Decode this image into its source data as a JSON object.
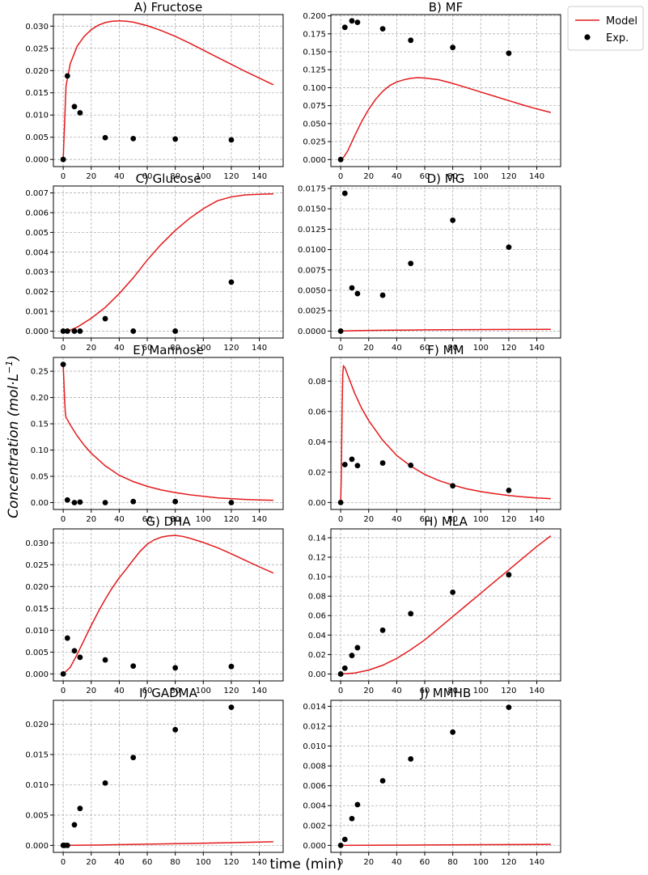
{
  "figure": {
    "xlabel": "time (min)",
    "ylabel_main": "Concentration (mol·L",
    "ylabel_sup": "−1",
    "ylabel_close": ")",
    "legend": {
      "placement": "top-right",
      "entries": [
        "Model",
        "Exp."
      ]
    },
    "colors": {
      "model": "#e41a1c",
      "exp": "#000000"
    }
  },
  "chart_data": [
    {
      "type": "line",
      "title": "A) Fructose",
      "xlim": [
        -7,
        157
      ],
      "ylim": [
        -0.0016,
        0.0326
      ],
      "xticks": [
        0,
        20,
        40,
        60,
        80,
        100,
        120,
        140
      ],
      "yticks": [
        0.0,
        0.005,
        0.01,
        0.015,
        0.02,
        0.025,
        0.03
      ],
      "ytick_labels": [
        "0.000",
        "0.005",
        "0.010",
        "0.015",
        "0.020",
        "0.025",
        "0.030"
      ],
      "grid": true,
      "series": [
        {
          "name": "Model",
          "type": "line",
          "x": [
            0,
            2,
            5,
            10,
            15,
            20,
            25,
            30,
            35,
            40,
            45,
            50,
            60,
            70,
            80,
            90,
            100,
            110,
            120,
            130,
            140,
            150
          ],
          "y": [
            0,
            0.0165,
            0.0215,
            0.0255,
            0.0277,
            0.0292,
            0.0302,
            0.0308,
            0.0311,
            0.0312,
            0.0311,
            0.0309,
            0.0301,
            0.029,
            0.0277,
            0.0262,
            0.0246,
            0.023,
            0.0214,
            0.0198,
            0.0183,
            0.0168
          ]
        },
        {
          "name": "Exp.",
          "type": "scatter",
          "x": [
            0,
            3,
            8,
            12,
            30,
            50,
            80,
            120
          ],
          "y": [
            0,
            0.0188,
            0.0119,
            0.0105,
            0.0049,
            0.0047,
            0.0046,
            0.0044
          ]
        }
      ]
    },
    {
      "type": "line",
      "title": "B) MF",
      "xlim": [
        -7,
        157
      ],
      "ylim": [
        -0.0098,
        0.2018
      ],
      "xticks": [
        0,
        20,
        40,
        60,
        80,
        100,
        120,
        140
      ],
      "yticks": [
        0.0,
        0.025,
        0.05,
        0.075,
        0.1,
        0.125,
        0.15,
        0.175,
        0.2
      ],
      "ytick_labels": [
        "0.000",
        "0.025",
        "0.050",
        "0.075",
        "0.100",
        "0.125",
        "0.150",
        "0.175",
        "0.200"
      ],
      "grid": true,
      "series": [
        {
          "name": "Model",
          "type": "line",
          "x": [
            0,
            2,
            5,
            10,
            15,
            20,
            25,
            30,
            35,
            40,
            45,
            50,
            55,
            60,
            70,
            80,
            90,
            100,
            110,
            120,
            130,
            140,
            150
          ],
          "y": [
            0,
            0.003,
            0.012,
            0.033,
            0.053,
            0.07,
            0.084,
            0.095,
            0.103,
            0.108,
            0.111,
            0.113,
            0.114,
            0.1135,
            0.111,
            0.106,
            0.1,
            0.094,
            0.088,
            0.082,
            0.076,
            0.0705,
            0.0655
          ]
        },
        {
          "name": "Exp.",
          "type": "scatter",
          "x": [
            0,
            3,
            8,
            12,
            30,
            50,
            80,
            120
          ],
          "y": [
            0,
            0.184,
            0.193,
            0.191,
            0.182,
            0.166,
            0.156,
            0.148
          ]
        }
      ]
    },
    {
      "type": "line",
      "title": "C) Glucose",
      "xlim": [
        -7,
        157
      ],
      "ylim": [
        -0.00035,
        0.00735
      ],
      "xticks": [
        0,
        20,
        40,
        60,
        80,
        100,
        120,
        140
      ],
      "yticks": [
        0,
        0.001,
        0.002,
        0.003,
        0.004,
        0.005,
        0.006,
        0.007
      ],
      "ytick_labels": [
        "0.000",
        "0.001",
        "0.002",
        "0.003",
        "0.004",
        "0.005",
        "0.006",
        "0.007"
      ],
      "grid": true,
      "series": [
        {
          "name": "Model",
          "type": "line",
          "x": [
            0,
            5,
            10,
            20,
            30,
            40,
            50,
            60,
            70,
            80,
            90,
            100,
            110,
            120,
            130,
            140,
            150
          ],
          "y": [
            0,
            5e-05,
            0.0002,
            0.00065,
            0.0012,
            0.0019,
            0.0027,
            0.0036,
            0.0044,
            0.0051,
            0.0057,
            0.0062,
            0.0066,
            0.0068,
            0.0069,
            0.00693,
            0.00695
          ]
        },
        {
          "name": "Exp.",
          "type": "scatter",
          "x": [
            0,
            3,
            8,
            12,
            30,
            50,
            80,
            120
          ],
          "y": [
            0,
            0,
            0,
            0,
            0.00063,
            0,
            0,
            0.00248
          ]
        }
      ]
    },
    {
      "type": "line",
      "title": "D) MG",
      "xlim": [
        -7,
        157
      ],
      "ylim": [
        -0.00085,
        0.0178
      ],
      "xticks": [
        0,
        20,
        40,
        60,
        80,
        100,
        120,
        140
      ],
      "yticks": [
        0,
        0.0025,
        0.005,
        0.0075,
        0.01,
        0.0125,
        0.015,
        0.0175
      ],
      "ytick_labels": [
        "0.0000",
        "0.0025",
        "0.0050",
        "0.0075",
        "0.0100",
        "0.0125",
        "0.0150",
        "0.0175"
      ],
      "grid": true,
      "series": [
        {
          "name": "Model",
          "type": "line",
          "x": [
            0,
            10,
            30,
            60,
            90,
            120,
            150
          ],
          "y": [
            0,
            5e-05,
            0.0001,
            0.00015,
            0.00018,
            0.0002,
            0.00021
          ]
        },
        {
          "name": "Exp.",
          "type": "scatter",
          "x": [
            0,
            3,
            8,
            12,
            30,
            50,
            80,
            120
          ],
          "y": [
            0,
            0.0169,
            0.0053,
            0.0046,
            0.0044,
            0.0083,
            0.0136,
            0.0103
          ]
        }
      ]
    },
    {
      "type": "line",
      "title": "E) Mannose",
      "xlim": [
        -7,
        157
      ],
      "ylim": [
        -0.0131,
        0.2763
      ],
      "xticks": [
        0,
        20,
        40,
        60,
        80,
        100,
        120,
        140
      ],
      "yticks": [
        0,
        0.05,
        0.1,
        0.15,
        0.2,
        0.25
      ],
      "ytick_labels": [
        "0.00",
        "0.05",
        "0.10",
        "0.15",
        "0.20",
        "0.25"
      ],
      "grid": true,
      "series": [
        {
          "name": "Model",
          "type": "line",
          "x": [
            0,
            0.5,
            1,
            1.5,
            2,
            3,
            5,
            10,
            15,
            20,
            30,
            40,
            50,
            60,
            70,
            80,
            90,
            100,
            110,
            120,
            130,
            140,
            150
          ],
          "y": [
            0.263,
            0.23,
            0.196,
            0.172,
            0.162,
            0.158,
            0.148,
            0.127,
            0.109,
            0.094,
            0.07,
            0.052,
            0.04,
            0.031,
            0.024,
            0.019,
            0.015,
            0.012,
            0.009,
            0.0075,
            0.006,
            0.005,
            0.0045
          ]
        },
        {
          "name": "Exp.",
          "type": "scatter",
          "x": [
            0,
            3,
            8,
            12,
            30,
            50,
            80,
            120
          ],
          "y": [
            0.263,
            0.005,
            0,
            0.001,
            0,
            0.002,
            0.002,
            0
          ]
        }
      ]
    },
    {
      "type": "line",
      "title": "F) MM",
      "xlim": [
        -7,
        157
      ],
      "ylim": [
        -0.0046,
        0.0956
      ],
      "xticks": [
        0,
        20,
        40,
        60,
        80,
        100,
        120,
        140
      ],
      "yticks": [
        0,
        0.02,
        0.04,
        0.06,
        0.08
      ],
      "ytick_labels": [
        "0.00",
        "0.02",
        "0.04",
        "0.06",
        "0.08"
      ],
      "grid": true,
      "series": [
        {
          "name": "Model",
          "type": "line",
          "x": [
            0,
            0.5,
            1,
            1.5,
            2,
            3,
            5,
            10,
            15,
            20,
            30,
            40,
            50,
            60,
            70,
            80,
            90,
            100,
            110,
            120,
            130,
            140,
            150
          ],
          "y": [
            0,
            0.02,
            0.06,
            0.085,
            0.09,
            0.089,
            0.084,
            0.072,
            0.062,
            0.054,
            0.041,
            0.031,
            0.024,
            0.0185,
            0.0145,
            0.0115,
            0.009,
            0.0072,
            0.0058,
            0.0046,
            0.0037,
            0.003,
            0.0025
          ]
        },
        {
          "name": "Exp.",
          "type": "scatter",
          "x": [
            0,
            3,
            8,
            12,
            30,
            50,
            80,
            120
          ],
          "y": [
            0,
            0.025,
            0.0285,
            0.0243,
            0.026,
            0.0245,
            0.011,
            0.008
          ]
        }
      ]
    },
    {
      "type": "line",
      "title": "G) DHA",
      "xlim": [
        -7,
        157
      ],
      "ylim": [
        -0.0016,
        0.0332
      ],
      "xticks": [
        0,
        20,
        40,
        60,
        80,
        100,
        120,
        140
      ],
      "yticks": [
        0,
        0.005,
        0.01,
        0.015,
        0.02,
        0.025,
        0.03
      ],
      "ytick_labels": [
        "0.000",
        "0.005",
        "0.010",
        "0.015",
        "0.020",
        "0.025",
        "0.030"
      ],
      "grid": true,
      "series": [
        {
          "name": "Model",
          "type": "line",
          "x": [
            0,
            5,
            10,
            15,
            20,
            25,
            30,
            35,
            40,
            45,
            50,
            55,
            60,
            65,
            70,
            75,
            80,
            85,
            90,
            100,
            110,
            120,
            130,
            140,
            150
          ],
          "y": [
            0,
            0.0015,
            0.0045,
            0.0078,
            0.0111,
            0.0142,
            0.0171,
            0.0197,
            0.022,
            0.024,
            0.0261,
            0.0281,
            0.0297,
            0.0307,
            0.0313,
            0.0316,
            0.0317,
            0.0315,
            0.0311,
            0.0301,
            0.0289,
            0.0275,
            0.026,
            0.0245,
            0.0231
          ]
        },
        {
          "name": "Exp.",
          "type": "scatter",
          "x": [
            0,
            3,
            8,
            12,
            30,
            50,
            80,
            120
          ],
          "y": [
            0,
            0.0082,
            0.0053,
            0.0038,
            0.0032,
            0.0018,
            0.0014,
            0.0017
          ]
        }
      ]
    },
    {
      "type": "line",
      "title": "H) MLA",
      "xlim": [
        -7,
        157
      ],
      "ylim": [
        -0.0071,
        0.1491
      ],
      "xticks": [
        0,
        20,
        40,
        60,
        80,
        100,
        120,
        140
      ],
      "yticks": [
        0,
        0.02,
        0.04,
        0.06,
        0.08,
        0.1,
        0.12,
        0.14
      ],
      "ytick_labels": [
        "0.00",
        "0.02",
        "0.04",
        "0.06",
        "0.08",
        "0.10",
        "0.12",
        "0.14"
      ],
      "grid": true,
      "series": [
        {
          "name": "Model",
          "type": "line",
          "x": [
            0,
            10,
            20,
            30,
            40,
            50,
            60,
            70,
            80,
            90,
            100,
            110,
            120,
            130,
            140,
            150
          ],
          "y": [
            0,
            0.001,
            0.004,
            0.009,
            0.016,
            0.025,
            0.035,
            0.047,
            0.059,
            0.071,
            0.083,
            0.095,
            0.107,
            0.119,
            0.131,
            0.142
          ]
        },
        {
          "name": "Exp.",
          "type": "scatter",
          "x": [
            0,
            3,
            8,
            12,
            30,
            50,
            80,
            120
          ],
          "y": [
            0,
            0.006,
            0.019,
            0.027,
            0.045,
            0.062,
            0.084,
            0.102
          ]
        }
      ]
    },
    {
      "type": "line",
      "title": "I) GADMA",
      "xlim": [
        -7,
        157
      ],
      "ylim": [
        -0.00115,
        0.02395
      ],
      "xticks": [
        0,
        20,
        40,
        60,
        80,
        100,
        120,
        140
      ],
      "yticks": [
        0,
        0.005,
        0.01,
        0.015,
        0.02
      ],
      "ytick_labels": [
        "0.000",
        "0.005",
        "0.010",
        "0.015",
        "0.020"
      ],
      "grid": true,
      "series": [
        {
          "name": "Model",
          "type": "line",
          "x": [
            0,
            30,
            60,
            90,
            120,
            150
          ],
          "y": [
            0,
            8e-05,
            0.0002,
            0.00032,
            0.00045,
            0.0006
          ]
        },
        {
          "name": "Exp.",
          "type": "scatter",
          "x": [
            0,
            1,
            3,
            8,
            12,
            30,
            50,
            80,
            120
          ],
          "y": [
            0,
            0,
            0,
            0.0034,
            0.0061,
            0.0103,
            0.0145,
            0.0191,
            0.0228
          ]
        }
      ]
    },
    {
      "type": "line",
      "title": "J) MMHB",
      "xlim": [
        -7,
        157
      ],
      "ylim": [
        -0.0007,
        0.0146
      ],
      "xticks": [
        0,
        20,
        40,
        60,
        80,
        100,
        120,
        140
      ],
      "yticks": [
        0,
        0.002,
        0.004,
        0.006,
        0.008,
        0.01,
        0.012,
        0.014
      ],
      "ytick_labels": [
        "0.000",
        "0.002",
        "0.004",
        "0.006",
        "0.008",
        "0.010",
        "0.012",
        "0.014"
      ],
      "grid": true,
      "series": [
        {
          "name": "Model",
          "type": "line",
          "x": [
            0,
            30,
            60,
            90,
            120,
            150
          ],
          "y": [
            0,
            2e-05,
            4e-05,
            6e-05,
            8e-05,
            0.0001
          ]
        },
        {
          "name": "Exp.",
          "type": "scatter",
          "x": [
            0,
            3,
            8,
            12,
            30,
            50,
            80,
            120
          ],
          "y": [
            0,
            0.0006,
            0.0027,
            0.0041,
            0.0065,
            0.0087,
            0.0114,
            0.0139
          ]
        }
      ]
    }
  ]
}
